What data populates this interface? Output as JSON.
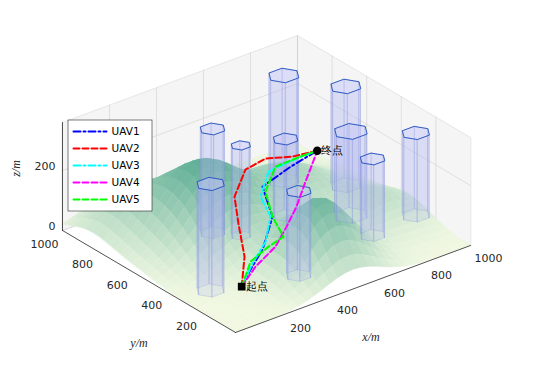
{
  "chart_data": {
    "type": "line3d",
    "xlabel": "x/m",
    "ylabel": "y/m",
    "zlabel": "z/m",
    "xlim": [
      0,
      1000
    ],
    "ylim": [
      0,
      1000
    ],
    "zlim": [
      0,
      360
    ],
    "xticks": [
      200,
      400,
      600,
      800,
      1000
    ],
    "yticks": [
      200,
      400,
      600,
      800,
      1000
    ],
    "zticks": [
      0,
      200
    ],
    "grid": true,
    "legend": "northwest",
    "series": [
      {
        "name": "UAV1",
        "color": "#0000ff",
        "line_style": "dashdot",
        "values": [
          [
            100,
            100,
            90
          ],
          [
            184,
            164,
            100
          ],
          [
            305,
            258,
            100
          ],
          [
            477,
            434,
            100
          ],
          [
            584,
            637,
            100
          ],
          [
            746,
            695,
            100
          ],
          [
            900,
            750,
            90
          ]
        ]
      },
      {
        "name": "UAV2",
        "color": "#ff0000",
        "line_style": "dashed",
        "values": [
          [
            100,
            100,
            90
          ],
          [
            227,
            256,
            100
          ],
          [
            357,
            468,
            100
          ],
          [
            467,
            640,
            100
          ],
          [
            615,
            778,
            100
          ],
          [
            716,
            800,
            100
          ],
          [
            795,
            752,
            100
          ],
          [
            900,
            750,
            90
          ]
        ]
      },
      {
        "name": "UAV3",
        "color": "#00ffff",
        "line_style": "dashdot",
        "values": [
          [
            100,
            100,
            90
          ],
          [
            216,
            196,
            100
          ],
          [
            348,
            299,
            100
          ],
          [
            472,
            439,
            100
          ],
          [
            535,
            582,
            100
          ],
          [
            667,
            715,
            100
          ],
          [
            807,
            732,
            100
          ],
          [
            900,
            750,
            90
          ]
        ]
      },
      {
        "name": "UAV4",
        "color": "#ff00ff",
        "line_style": "dashed",
        "values": [
          [
            100,
            100,
            90
          ],
          [
            211,
            171,
            100
          ],
          [
            352,
            247,
            100
          ],
          [
            470,
            343,
            100
          ],
          [
            584,
            441,
            100
          ],
          [
            719,
            572,
            100
          ],
          [
            817,
            665,
            100
          ],
          [
            900,
            750,
            90
          ]
        ]
      },
      {
        "name": "UAV5",
        "color": "#00ff00",
        "line_style": "dashed",
        "values": [
          [
            100,
            100,
            90
          ],
          [
            220,
            212,
            100
          ],
          [
            334,
            263,
            100
          ],
          [
            417,
            289,
            100
          ],
          [
            477,
            434,
            100
          ],
          [
            570,
            601,
            100
          ],
          [
            707,
            729,
            100
          ],
          [
            816,
            734,
            100
          ],
          [
            900,
            750,
            90
          ]
        ]
      }
    ],
    "annotations": [
      {
        "text": "起点",
        "x": 100,
        "y": 100,
        "z": 90,
        "marker": "square"
      },
      {
        "text": "终点",
        "x": 900,
        "y": 750,
        "z": 90,
        "marker": "circle"
      }
    ],
    "obstacles": [
      {
        "x": 383,
        "y": 654,
        "radius": 45,
        "height": 345
      },
      {
        "x": 444,
        "y": 573,
        "radius": 35,
        "height": 300
      },
      {
        "x": 121,
        "y": 309,
        "radius": 50,
        "height": 355
      },
      {
        "x": 649,
        "y": 593,
        "radius": 45,
        "height": 255
      },
      {
        "x": 418,
        "y": 203,
        "radius": 45,
        "height": 280
      },
      {
        "x": 800,
        "y": 808,
        "radius": 55,
        "height": 350
      },
      {
        "x": 940,
        "y": 640,
        "radius": 55,
        "height": 330
      },
      {
        "x": 820,
        "y": 448,
        "radius": 60,
        "height": 280
      },
      {
        "x": 788,
        "y": 279,
        "radius": 45,
        "height": 255
      },
      {
        "x": 990,
        "y": 303,
        "radius": 50,
        "height": 275
      }
    ],
    "terrain": [
      {
        "x": 330,
        "y": 620,
        "height": 250,
        "spread": 150
      },
      {
        "x": 500,
        "y": 190,
        "height": 230,
        "spread": 120
      },
      {
        "x": 700,
        "y": 650,
        "height": 120,
        "spread": 150
      },
      {
        "x": 150,
        "y": 850,
        "height": 100,
        "spread": 120
      },
      {
        "x": 880,
        "y": 350,
        "height": 80,
        "spread": 120
      }
    ]
  }
}
